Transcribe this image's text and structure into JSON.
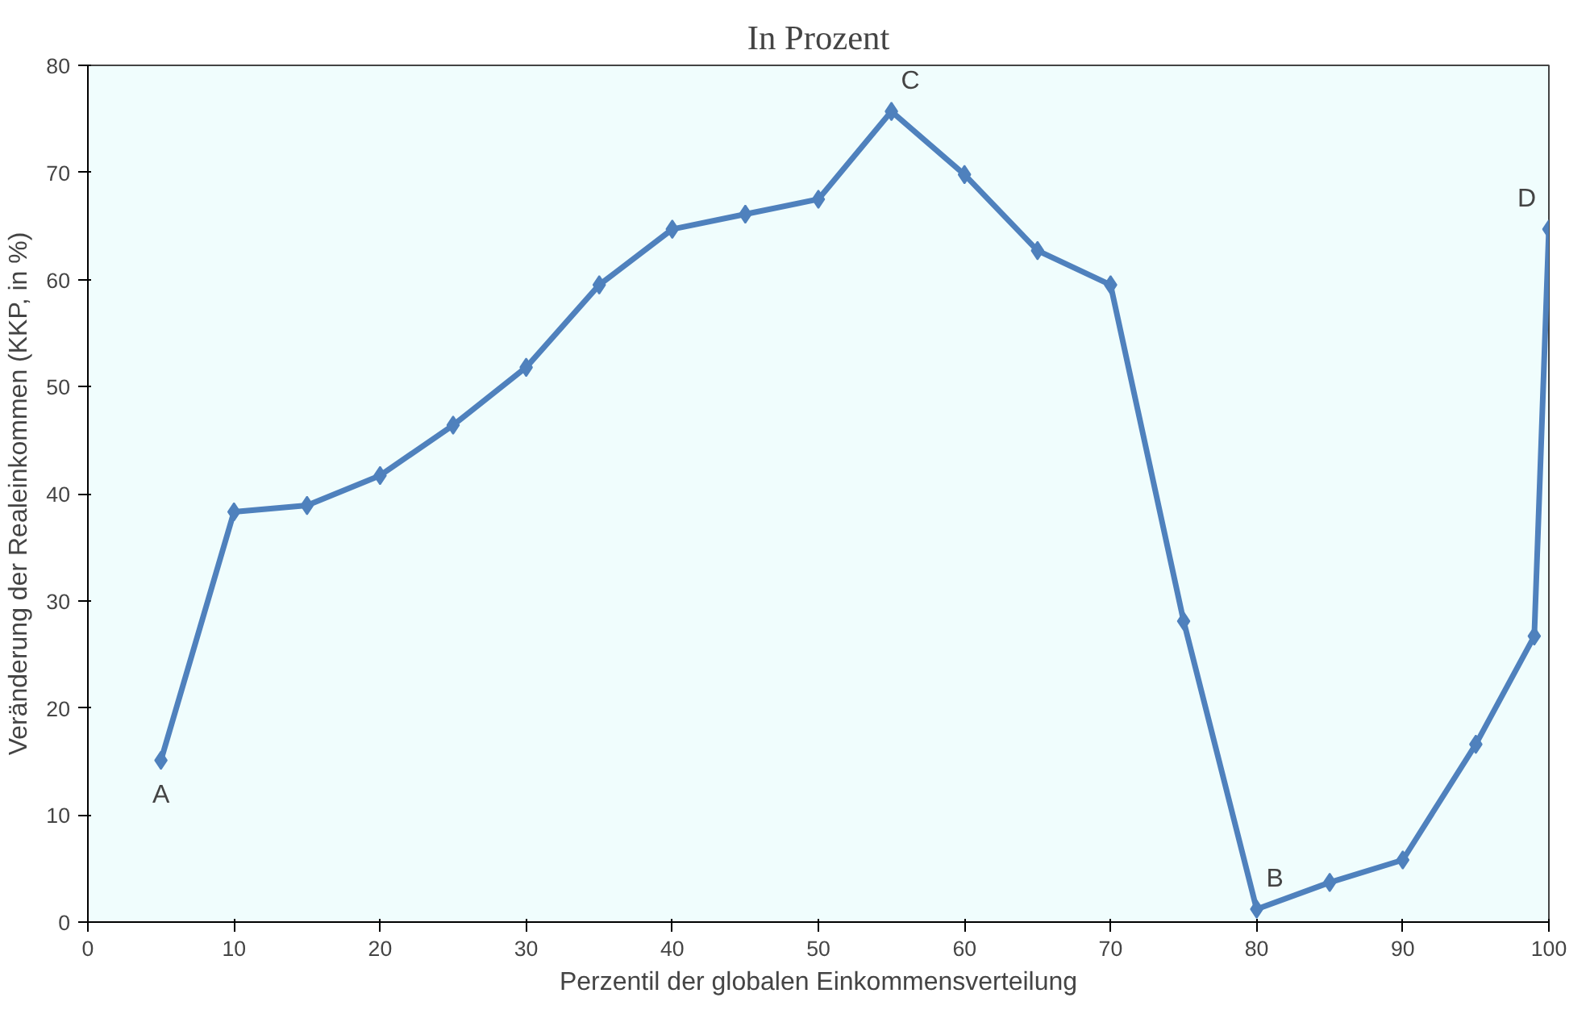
{
  "chart_data": {
    "type": "line",
    "title": "In Prozent",
    "xlabel": "Perzentil der globalen Einkommensverteilung",
    "ylabel": "Veränderung der Realeinkommen (KKP, in %)",
    "x": [
      5,
      10,
      15,
      20,
      25,
      30,
      35,
      40,
      45,
      50,
      55,
      60,
      65,
      70,
      75,
      80,
      85,
      90,
      95,
      99,
      100
    ],
    "series": [
      {
        "color": "#4f81bd",
        "values": [
          15.1,
          38.3,
          38.9,
          41.7,
          46.4,
          51.8,
          59.5,
          64.7,
          66.1,
          67.5,
          75.7,
          69.8,
          62.7,
          59.5,
          28.1,
          1.2,
          3.7,
          5.8,
          16.6,
          26.7,
          64.7
        ]
      }
    ],
    "annotations": [
      {
        "text": "A",
        "x": 5,
        "y": 15.1
      },
      {
        "text": "B",
        "x": 80,
        "y": 1.2
      },
      {
        "text": "C",
        "x": 55,
        "y": 75.7
      },
      {
        "text": "D",
        "x": 100,
        "y": 64.7
      }
    ],
    "xlim": [
      0,
      100
    ],
    "ylim": [
      0,
      80
    ],
    "xticks": [
      0,
      10,
      20,
      30,
      40,
      50,
      60,
      70,
      80,
      90,
      100
    ],
    "yticks": [
      0,
      10,
      20,
      30,
      40,
      50,
      60,
      70,
      80
    ],
    "grid": false,
    "marker": "diamond",
    "line_style": "solid"
  }
}
